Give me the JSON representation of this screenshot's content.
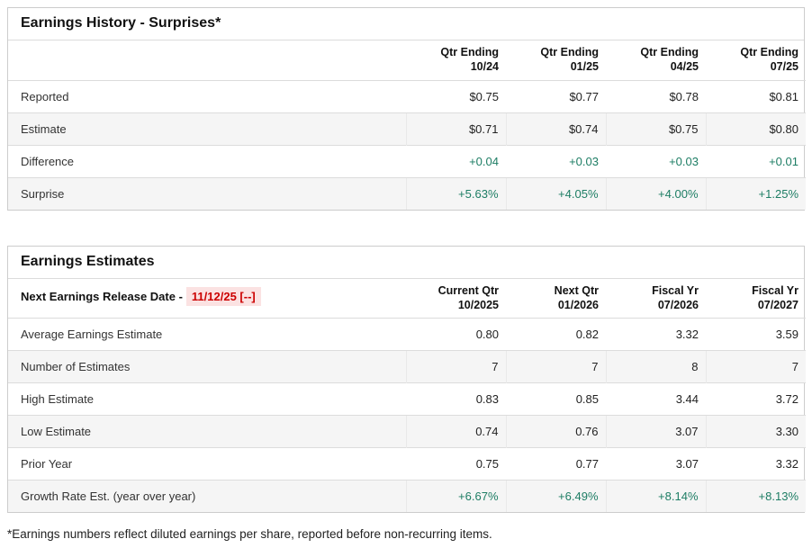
{
  "colors": {
    "positive_green": "#1d7d64",
    "alert_red": "#cc0000",
    "alert_red_bg": "#fbe2e2",
    "alt_row_gray": "#f5f5f5",
    "border_gray": "#dcdcdc"
  },
  "history": {
    "title": "Earnings History - Surprises*",
    "columns": [
      {
        "line1": "Qtr Ending",
        "line2": "10/24"
      },
      {
        "line1": "Qtr Ending",
        "line2": "01/25"
      },
      {
        "line1": "Qtr Ending",
        "line2": "04/25"
      },
      {
        "line1": "Qtr Ending",
        "line2": "07/25"
      }
    ],
    "rows": [
      {
        "label": "Reported",
        "values": [
          "$0.75",
          "$0.77",
          "$0.78",
          "$0.81"
        ]
      },
      {
        "label": "Estimate",
        "values": [
          "$0.71",
          "$0.74",
          "$0.75",
          "$0.80"
        ]
      },
      {
        "label": "Difference",
        "values": [
          "+0.04",
          "+0.03",
          "+0.03",
          "+0.01"
        ]
      },
      {
        "label": "Surprise",
        "values": [
          "+5.63%",
          "+4.05%",
          "+4.00%",
          "+1.25%"
        ]
      }
    ]
  },
  "estimates": {
    "title": "Earnings Estimates",
    "release_label": "Next Earnings Release Date -",
    "release_date": "11/12/25 [--]",
    "columns": [
      {
        "line1": "Current Qtr",
        "line2": "10/2025"
      },
      {
        "line1": "Next Qtr",
        "line2": "01/2026"
      },
      {
        "line1": "Fiscal Yr",
        "line2": "07/2026"
      },
      {
        "line1": "Fiscal Yr",
        "line2": "07/2027"
      }
    ],
    "rows": [
      {
        "label": "Average Earnings Estimate",
        "values": [
          "0.80",
          "0.82",
          "3.32",
          "3.59"
        ]
      },
      {
        "label": "Number of Estimates",
        "values": [
          "7",
          "7",
          "8",
          "7"
        ]
      },
      {
        "label": "High Estimate",
        "values": [
          "0.83",
          "0.85",
          "3.44",
          "3.72"
        ]
      },
      {
        "label": "Low Estimate",
        "values": [
          "0.74",
          "0.76",
          "3.07",
          "3.30"
        ]
      },
      {
        "label": "Prior Year",
        "values": [
          "0.75",
          "0.77",
          "3.07",
          "3.32"
        ]
      },
      {
        "label": "Growth Rate Est. (year over year)",
        "values": [
          "+6.67%",
          "+6.49%",
          "+8.14%",
          "+8.13%"
        ]
      }
    ]
  },
  "page": {
    "footnote": "*Earnings numbers reflect diluted earnings per share, reported before non-recurring items."
  }
}
